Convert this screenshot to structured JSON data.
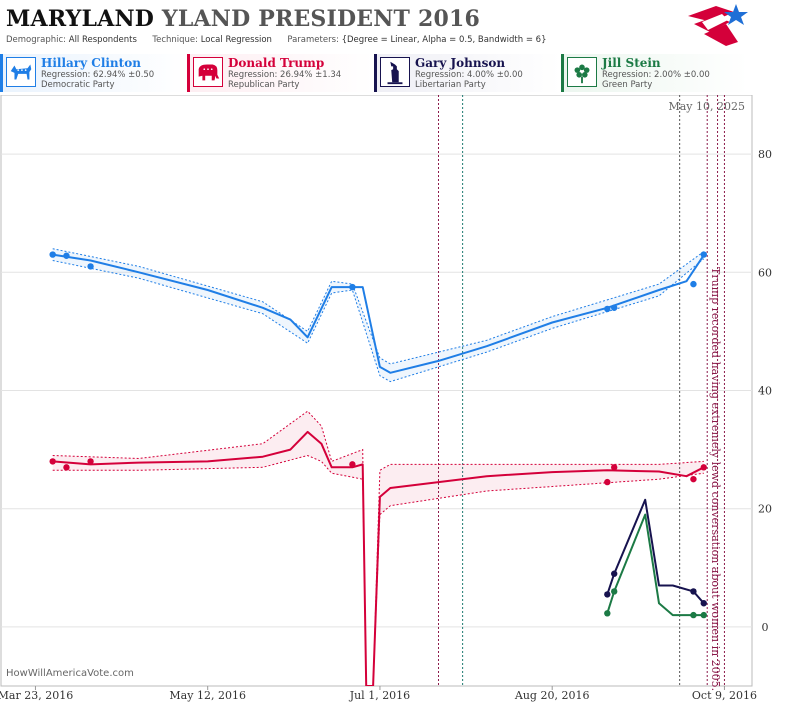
{
  "header": {
    "title_main": "MARYLAND",
    "title_rest": "YLAND PRESIDENT 2016",
    "demographic_label": "Demographic:",
    "demographic_value": "All Respondents",
    "technique_label": "Technique:",
    "technique_value": "Local Regression",
    "parameters_label": "Parameters:",
    "parameters_value": "{Degree = Linear, Alpha = 0.5, Bandwidth = 6}"
  },
  "legend": [
    {
      "name": "Hillary Clinton",
      "regression": "Regression: 62.94% ±0.50",
      "party": "Democratic Party",
      "color": "#1f7ee6",
      "bg": "#eaf3fd",
      "icon": "donkey-icon"
    },
    {
      "name": "Donald Trump",
      "regression": "Regression: 26.94% ±1.34",
      "party": "Republican Party",
      "color": "#d4003a",
      "bg": "#fdeef2",
      "icon": "elephant-icon"
    },
    {
      "name": "Gary Johnson",
      "regression": "Regression: 4.00% ±0.00",
      "party": "Libertarian Party",
      "color": "#17134f",
      "bg": "#efeff5",
      "icon": "statue-of-liberty-icon"
    },
    {
      "name": "Jill Stein",
      "regression": "Regression: 2.00% ±0.00",
      "party": "Green Party",
      "color": "#1c7a45",
      "bg": "#ecf6ef",
      "icon": "flower-icon"
    }
  ],
  "source": "HowWillAmericaVote.com",
  "chart_data": {
    "type": "line",
    "x_ticks": [
      "Mar 23, 2016",
      "May 12, 2016",
      "Jul 1, 2016",
      "Aug 20, 2016",
      "Oct 9, 2016"
    ],
    "y_ticks": [
      "0",
      "20",
      "40",
      "60",
      "80"
    ],
    "ylim": [
      -10,
      90
    ],
    "xlim": [
      "2016-03-13",
      "2016-10-17"
    ],
    "grid": true,
    "date_label": "May 10, 2025",
    "annotation": "Trump recorded having extremely lewd conversation about women in 2005.",
    "event_lines": [
      {
        "date": "2016-07-18",
        "color": "#8b1a4a"
      },
      {
        "date": "2016-07-25",
        "color": "#1c7a70"
      },
      {
        "date": "2016-09-26",
        "color": "#555555"
      },
      {
        "date": "2016-10-04",
        "color": "#8b1a4a"
      },
      {
        "date": "2016-10-07",
        "color": "#8b1a4a"
      },
      {
        "date": "2016-10-09",
        "color": "#8b1a4a"
      }
    ],
    "series": [
      {
        "name": "Hillary Clinton",
        "color": "#1f7ee6",
        "line": [
          [
            "2016-03-28",
            63
          ],
          [
            "2016-04-08",
            62
          ],
          [
            "2016-04-22",
            60
          ],
          [
            "2016-05-12",
            57
          ],
          [
            "2016-05-28",
            54
          ],
          [
            "2016-06-05",
            52
          ],
          [
            "2016-06-10",
            49
          ],
          [
            "2016-06-17",
            57.5
          ],
          [
            "2016-06-23",
            57.5
          ],
          [
            "2016-06-26",
            57.5
          ],
          [
            "2016-07-01",
            44
          ],
          [
            "2016-07-04",
            43
          ],
          [
            "2016-07-18",
            45
          ],
          [
            "2016-08-01",
            47.5
          ],
          [
            "2016-08-20",
            51.5
          ],
          [
            "2016-09-05",
            54
          ],
          [
            "2016-09-20",
            57
          ],
          [
            "2016-09-28",
            58.5
          ],
          [
            "2016-10-03",
            62.9
          ]
        ],
        "upper": [
          [
            "2016-03-28",
            64
          ],
          [
            "2016-04-22",
            61
          ],
          [
            "2016-05-28",
            55
          ],
          [
            "2016-06-10",
            50
          ],
          [
            "2016-06-17",
            58.5
          ],
          [
            "2016-06-23",
            58
          ],
          [
            "2016-07-01",
            45.5
          ],
          [
            "2016-07-04",
            44.5
          ],
          [
            "2016-08-01",
            48.5
          ],
          [
            "2016-08-20",
            52.5
          ],
          [
            "2016-09-20",
            58
          ],
          [
            "2016-10-03",
            63.5
          ]
        ],
        "lower": [
          [
            "2016-03-28",
            62
          ],
          [
            "2016-04-22",
            59
          ],
          [
            "2016-05-28",
            53
          ],
          [
            "2016-06-10",
            48
          ],
          [
            "2016-06-17",
            56.5
          ],
          [
            "2016-06-23",
            57
          ],
          [
            "2016-07-01",
            42.5
          ],
          [
            "2016-07-04",
            41.5
          ],
          [
            "2016-08-01",
            46.5
          ],
          [
            "2016-08-20",
            50.5
          ],
          [
            "2016-09-20",
            56
          ],
          [
            "2016-10-03",
            62.3
          ]
        ],
        "points": [
          [
            "2016-03-28",
            63
          ],
          [
            "2016-04-01",
            62.8
          ],
          [
            "2016-04-08",
            61
          ],
          [
            "2016-06-23",
            57.5
          ],
          [
            "2016-09-05",
            53.8
          ],
          [
            "2016-09-07",
            54
          ],
          [
            "2016-09-30",
            58
          ],
          [
            "2016-10-03",
            63
          ]
        ]
      },
      {
        "name": "Donald Trump",
        "color": "#d4003a",
        "line": [
          [
            "2016-03-28",
            28
          ],
          [
            "2016-04-08",
            27.5
          ],
          [
            "2016-04-22",
            27.8
          ],
          [
            "2016-05-12",
            28
          ],
          [
            "2016-05-28",
            28.8
          ],
          [
            "2016-06-05",
            30
          ],
          [
            "2016-06-10",
            33
          ],
          [
            "2016-06-14",
            31
          ],
          [
            "2016-06-17",
            27
          ],
          [
            "2016-06-23",
            27
          ],
          [
            "2016-06-26",
            27.5
          ],
          [
            "2016-06-27",
            -10
          ],
          [
            "2016-06-29",
            -10
          ],
          [
            "2016-07-01",
            22
          ],
          [
            "2016-07-04",
            23.5
          ],
          [
            "2016-07-18",
            24.5
          ],
          [
            "2016-08-01",
            25.5
          ],
          [
            "2016-08-20",
            26.2
          ],
          [
            "2016-09-05",
            26.5
          ],
          [
            "2016-09-20",
            26.3
          ],
          [
            "2016-09-28",
            25.5
          ],
          [
            "2016-10-03",
            27
          ]
        ],
        "upper": [
          [
            "2016-03-28",
            29
          ],
          [
            "2016-04-22",
            28.5
          ],
          [
            "2016-05-28",
            31
          ],
          [
            "2016-06-10",
            36.5
          ],
          [
            "2016-06-14",
            34
          ],
          [
            "2016-06-17",
            28
          ],
          [
            "2016-06-26",
            30
          ],
          [
            "2016-06-27",
            -10
          ],
          [
            "2016-06-29",
            -10
          ],
          [
            "2016-07-01",
            26.5
          ],
          [
            "2016-07-04",
            27.5
          ],
          [
            "2016-08-01",
            27.5
          ],
          [
            "2016-09-20",
            27.5
          ],
          [
            "2016-10-03",
            28
          ]
        ],
        "lower": [
          [
            "2016-03-28",
            26.5
          ],
          [
            "2016-04-22",
            26.5
          ],
          [
            "2016-05-28",
            27
          ],
          [
            "2016-06-10",
            29
          ],
          [
            "2016-06-14",
            28
          ],
          [
            "2016-06-17",
            26
          ],
          [
            "2016-06-26",
            25
          ],
          [
            "2016-06-27",
            -10
          ],
          [
            "2016-06-29",
            -10
          ],
          [
            "2016-07-01",
            19
          ],
          [
            "2016-07-04",
            20.5
          ],
          [
            "2016-08-01",
            23
          ],
          [
            "2016-09-20",
            25
          ],
          [
            "2016-10-03",
            26
          ]
        ],
        "points": [
          [
            "2016-03-28",
            28
          ],
          [
            "2016-04-01",
            27
          ],
          [
            "2016-04-08",
            28
          ],
          [
            "2016-06-23",
            27.5
          ],
          [
            "2016-09-05",
            24.5
          ],
          [
            "2016-09-07",
            27
          ],
          [
            "2016-09-30",
            25
          ],
          [
            "2016-10-03",
            27
          ]
        ]
      },
      {
        "name": "Gary Johnson",
        "color": "#17134f",
        "line": [
          [
            "2016-09-05",
            5.5
          ],
          [
            "2016-09-07",
            9
          ],
          [
            "2016-09-16",
            21.5
          ],
          [
            "2016-09-20",
            7
          ],
          [
            "2016-09-24",
            7
          ],
          [
            "2016-09-30",
            6
          ],
          [
            "2016-10-03",
            4
          ]
        ],
        "points": [
          [
            "2016-09-05",
            5.5
          ],
          [
            "2016-09-07",
            9
          ],
          [
            "2016-09-30",
            6
          ],
          [
            "2016-10-03",
            4
          ]
        ]
      },
      {
        "name": "Jill Stein",
        "color": "#1c7a45",
        "line": [
          [
            "2016-09-05",
            2.3
          ],
          [
            "2016-09-07",
            6
          ],
          [
            "2016-09-16",
            19
          ],
          [
            "2016-09-20",
            4
          ],
          [
            "2016-09-24",
            2
          ],
          [
            "2016-09-30",
            2
          ],
          [
            "2016-10-03",
            2
          ]
        ],
        "points": [
          [
            "2016-09-05",
            2.3
          ],
          [
            "2016-09-07",
            6
          ],
          [
            "2016-09-30",
            2
          ],
          [
            "2016-10-03",
            2
          ]
        ]
      }
    ]
  }
}
